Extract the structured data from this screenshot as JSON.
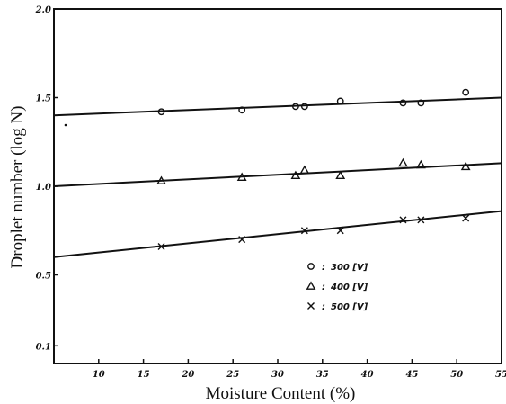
{
  "chart_data": {
    "type": "scatter",
    "title": "",
    "xlabel": "Moisture Content (%)",
    "ylabel": "Droplet number (log N)",
    "xlim": [
      5,
      55
    ],
    "ylim": [
      0,
      20
    ],
    "grid": false,
    "x_ticks": [
      10,
      15,
      20,
      25,
      30,
      35,
      40,
      45,
      50,
      55
    ],
    "x_tick_labels": [
      "10",
      "15",
      "20",
      "25",
      "30",
      "35",
      "40",
      "45",
      "50",
      "55"
    ],
    "y_ticks": [
      1,
      5,
      10,
      15,
      20
    ],
    "y_tick_labels": [
      "0.1",
      "0.5",
      "1.0",
      "1.5",
      "2.0"
    ],
    "legend_position": "lower-right",
    "series": [
      {
        "name": "300 [V]",
        "marker": "circle",
        "x": [
          17,
          26,
          32,
          33,
          37,
          44,
          46,
          51
        ],
        "y": [
          14.2,
          14.3,
          14.5,
          14.5,
          14.8,
          14.7,
          14.7,
          15.3
        ],
        "fit": [
          [
            5,
            14.0
          ],
          [
            55,
            15.0
          ]
        ]
      },
      {
        "name": "400 [V]",
        "marker": "triangle",
        "x": [
          17,
          26,
          32,
          33,
          37,
          44,
          46,
          51
        ],
        "y": [
          10.3,
          10.5,
          10.6,
          10.9,
          10.6,
          11.3,
          11.2,
          11.1
        ],
        "fit": [
          [
            5,
            10.0
          ],
          [
            55,
            11.3
          ]
        ]
      },
      {
        "name": "500 [V]",
        "marker": "cross",
        "x": [
          17,
          26,
          33,
          37,
          44,
          46,
          51
        ],
        "y": [
          6.6,
          7.0,
          7.5,
          7.5,
          8.1,
          8.1,
          8.2
        ],
        "fit": [
          [
            5,
            6.0
          ],
          [
            55,
            8.6
          ]
        ]
      }
    ],
    "legend_entries": [
      {
        "symbol": "o",
        "separator": ":",
        "label": "300 [V]"
      },
      {
        "symbol": "Δ",
        "separator": ":",
        "label": "400 [V]"
      },
      {
        "symbol": "×",
        "separator": ":",
        "label": "500 [V]"
      }
    ]
  }
}
